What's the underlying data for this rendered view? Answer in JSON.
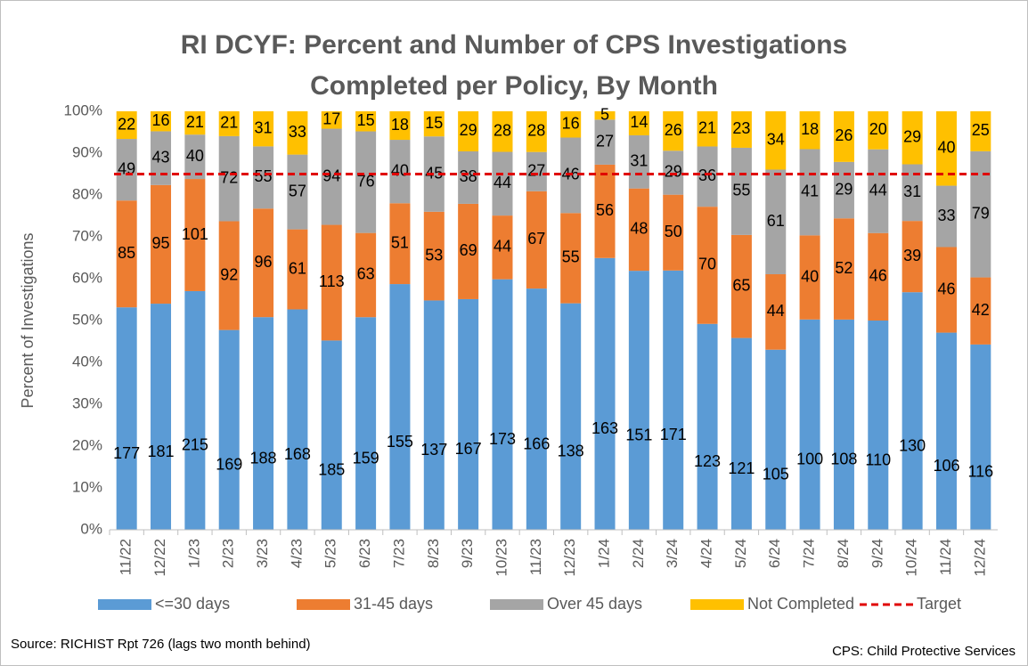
{
  "chart_data": {
    "type": "bar",
    "stacking": "percent",
    "title": [
      "RI DCYF: Percent and Number of CPS Investigations",
      "Completed per Policy, By Month"
    ],
    "y_label": "Percent of Investigations",
    "categories": [
      "11/22",
      "12/22",
      "1/23",
      "2/23",
      "3/23",
      "4/23",
      "5/23",
      "6/23",
      "7/23",
      "8/23",
      "9/23",
      "10/23",
      "11/23",
      "12/23",
      "1/24",
      "2/24",
      "3/24",
      "4/24",
      "5/24",
      "6/24",
      "7/24",
      "8/24",
      "9/24",
      "10/24",
      "11/24",
      "12/24"
    ],
    "series": [
      {
        "name": "<=30 days",
        "color": "#5b9bd5",
        "values": [
          177,
          181,
          215,
          169,
          188,
          168,
          185,
          159,
          155,
          137,
          167,
          173,
          166,
          138,
          163,
          151,
          171,
          123,
          121,
          105,
          100,
          108,
          110,
          130,
          106,
          116
        ]
      },
      {
        "name": "31-45 days",
        "color": "#ed7d31",
        "values": [
          85,
          95,
          101,
          92,
          96,
          61,
          113,
          63,
          51,
          53,
          69,
          44,
          67,
          55,
          56,
          48,
          50,
          70,
          65,
          44,
          40,
          52,
          46,
          39,
          46,
          42
        ]
      },
      {
        "name": "Over 45 days",
        "color": "#a5a5a5",
        "values": [
          49,
          43,
          40,
          72,
          55,
          57,
          94,
          76,
          40,
          45,
          38,
          44,
          27,
          46,
          27,
          31,
          29,
          36,
          55,
          61,
          41,
          29,
          44,
          31,
          33,
          79
        ]
      },
      {
        "name": "Not Completed",
        "color": "#ffc000",
        "values": [
          22,
          16,
          21,
          21,
          31,
          33,
          17,
          15,
          18,
          15,
          29,
          28,
          28,
          16,
          5,
          14,
          26,
          21,
          23,
          34,
          18,
          26,
          20,
          29,
          40,
          25
        ]
      }
    ],
    "target": {
      "name": "Target",
      "value": 85,
      "color": "#e00000"
    },
    "ylim": [
      0,
      100
    ],
    "yticks": [
      {
        "value": 0,
        "label": "0%"
      },
      {
        "value": 10,
        "label": "10%"
      },
      {
        "value": 20,
        "label": "20%"
      },
      {
        "value": 30,
        "label": "30%"
      },
      {
        "value": 40,
        "label": "40%"
      },
      {
        "value": 50,
        "label": "50%"
      },
      {
        "value": 60,
        "label": "60%"
      },
      {
        "value": 70,
        "label": "70%"
      },
      {
        "value": 80,
        "label": "80%"
      },
      {
        "value": 90,
        "label": "90%"
      },
      {
        "value": 100,
        "label": "100%"
      }
    ],
    "grid": false,
    "legend": "bottom",
    "source": "Source: RICHIST Rpt 726 (lags two month behind)",
    "note": "CPS: Child Protective Services"
  }
}
